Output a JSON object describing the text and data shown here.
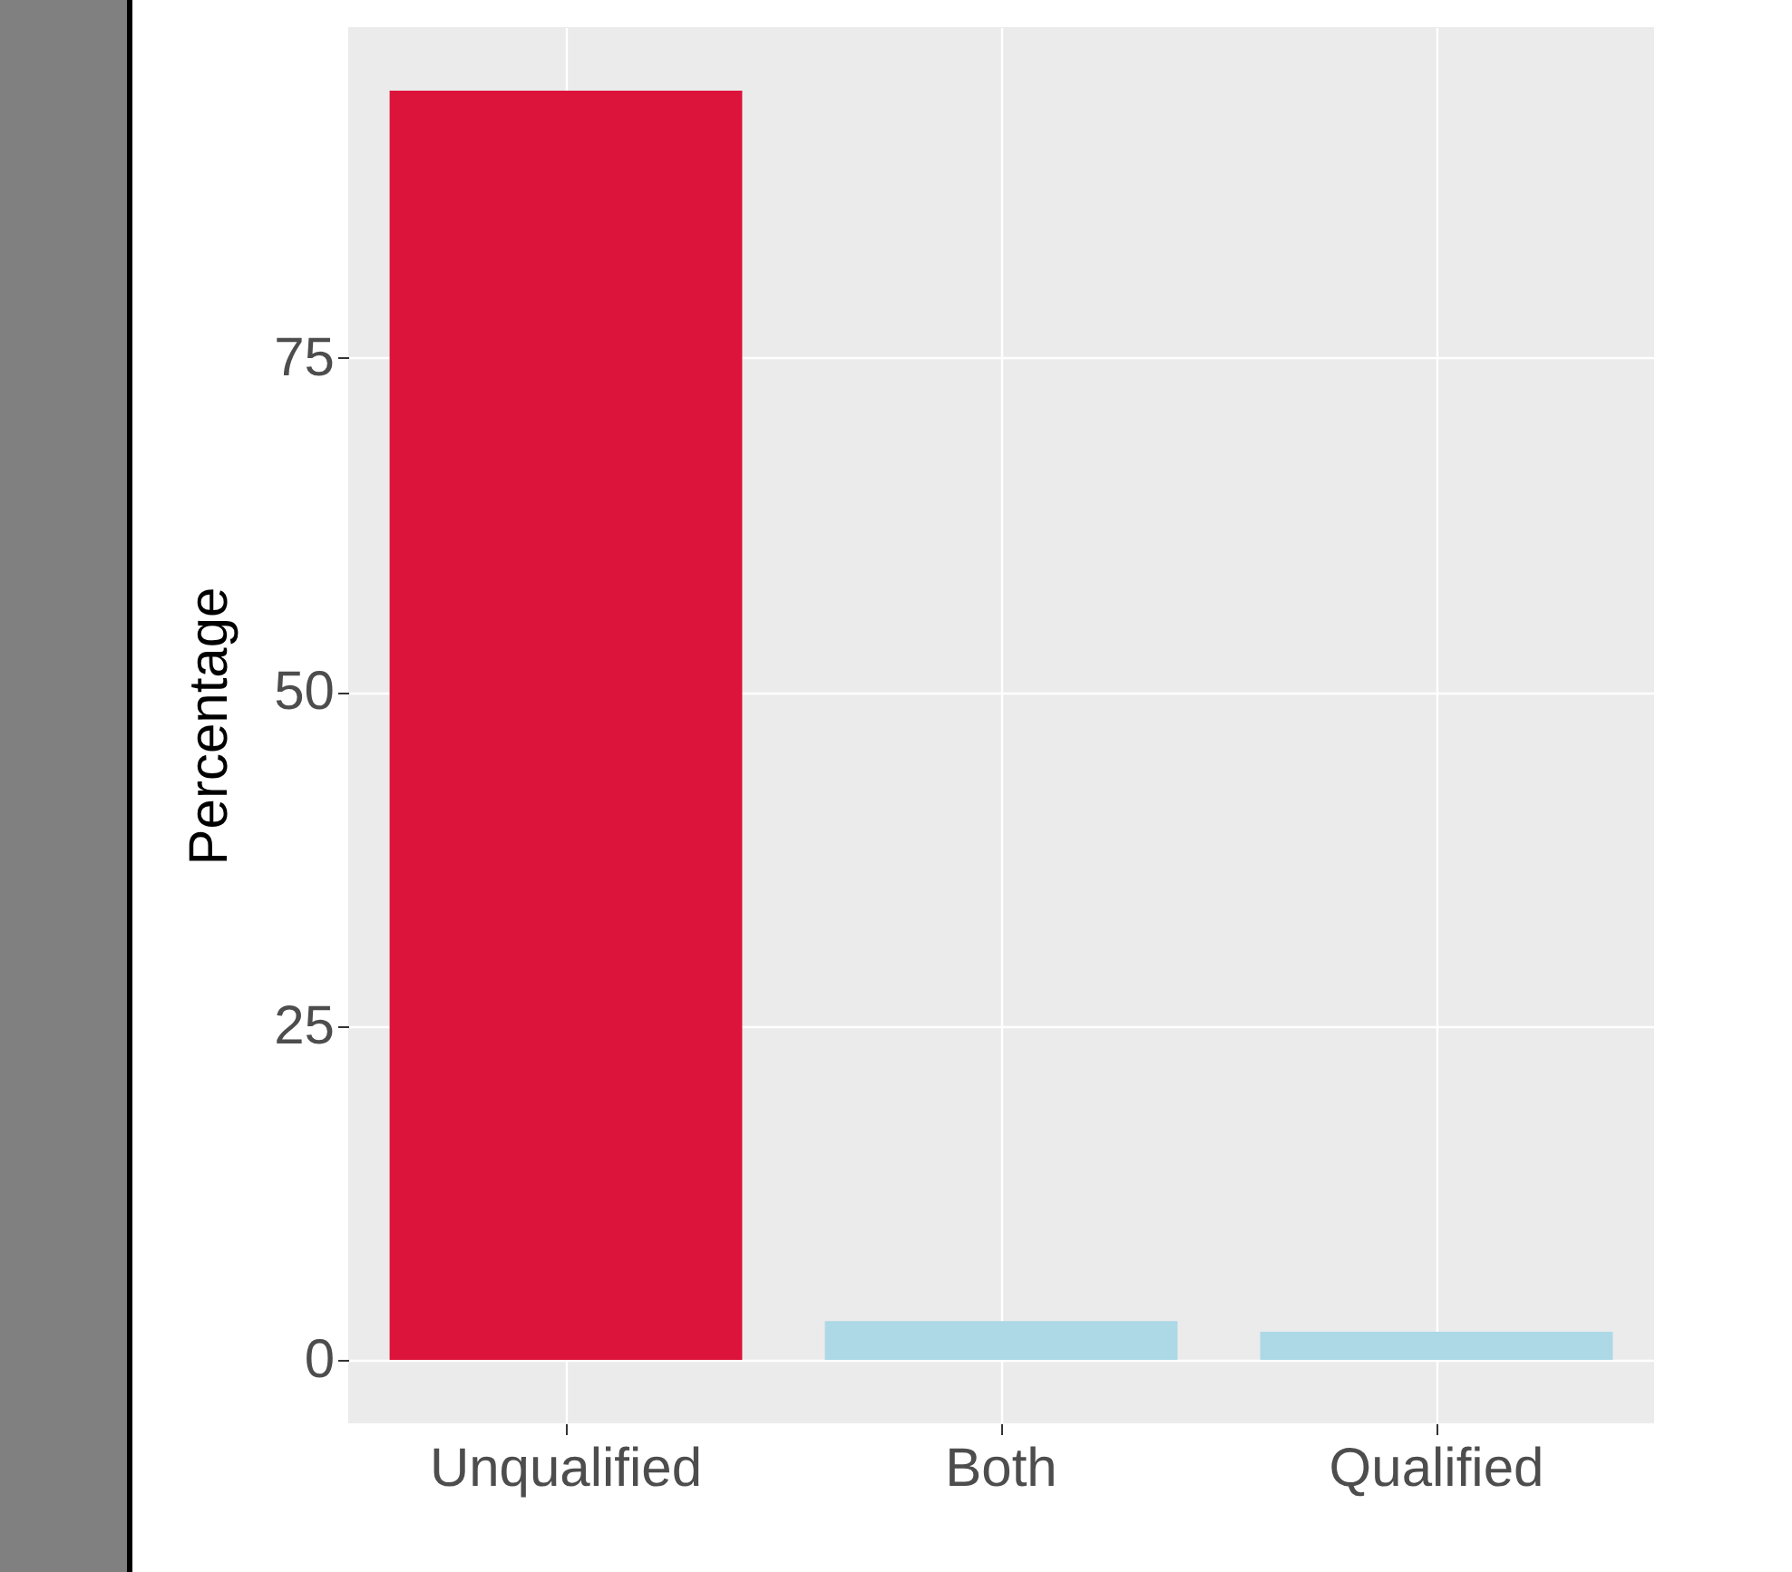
{
  "chart_data": {
    "type": "bar",
    "ylabel": "Percentage",
    "categories": [
      "Unqualified",
      "Both",
      "Qualified"
    ],
    "values": [
      95.0,
      2.9,
      2.1
    ],
    "colors": [
      "#dc143c",
      "#add8e6",
      "#add8e6"
    ],
    "ylim": [
      -4.75,
      99.75
    ],
    "yticks": [
      0,
      25,
      50,
      75
    ],
    "grid": true
  }
}
